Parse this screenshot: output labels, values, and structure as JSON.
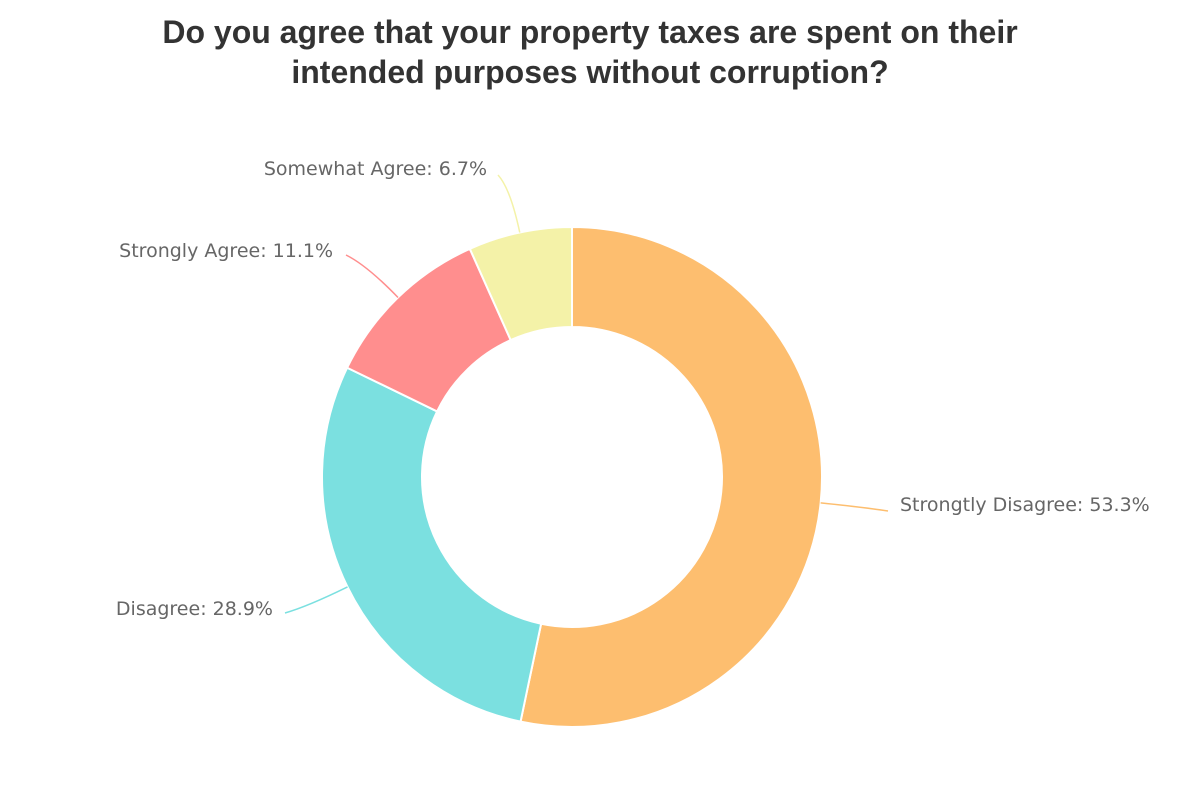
{
  "chart_data": {
    "type": "pie",
    "variant": "donut",
    "title_lines": [
      "Do you agree that your property taxes are spent on their",
      "intended purposes without corruption?"
    ],
    "slices": [
      {
        "name": "Strongtly Disagree",
        "value": 53.3,
        "label": "Strongtly Disagree: 53.3%",
        "color": "#FDBE6F"
      },
      {
        "name": "Disagree",
        "value": 28.9,
        "label": "Disagree: 28.9%",
        "color": "#7BE0E0"
      },
      {
        "name": "Strongly Agree",
        "value": 11.1,
        "label": "Strongly Agree: 11.1%",
        "color": "#FF8E8E"
      },
      {
        "name": "Somewhat Agree",
        "value": 6.7,
        "label": "Somewhat Agree: 6.7%",
        "color": "#F4F2A8"
      }
    ],
    "legend": "none"
  }
}
